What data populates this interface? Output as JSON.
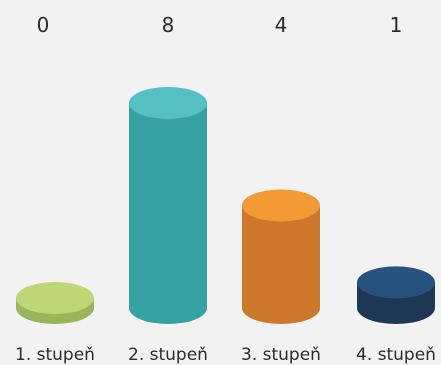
{
  "chart_data": {
    "type": "bar",
    "categories": [
      "1. stupeň",
      "2. stupeň",
      "3. stupeň",
      "4. stupeň"
    ],
    "values": [
      0,
      8,
      4,
      1
    ],
    "value_labels": [
      "0",
      "8",
      "4",
      "1"
    ],
    "ylim": [
      0,
      8
    ],
    "grid": false,
    "legend": "none",
    "colors": [
      {
        "top": "#bfd677",
        "side": "#99b55a"
      },
      {
        "top": "#55bfc3",
        "side": "#35a1a2"
      },
      {
        "top": "#f29a35",
        "side": "#cc772b"
      },
      {
        "top": "#27527e",
        "side": "#1e3754"
      }
    ]
  }
}
